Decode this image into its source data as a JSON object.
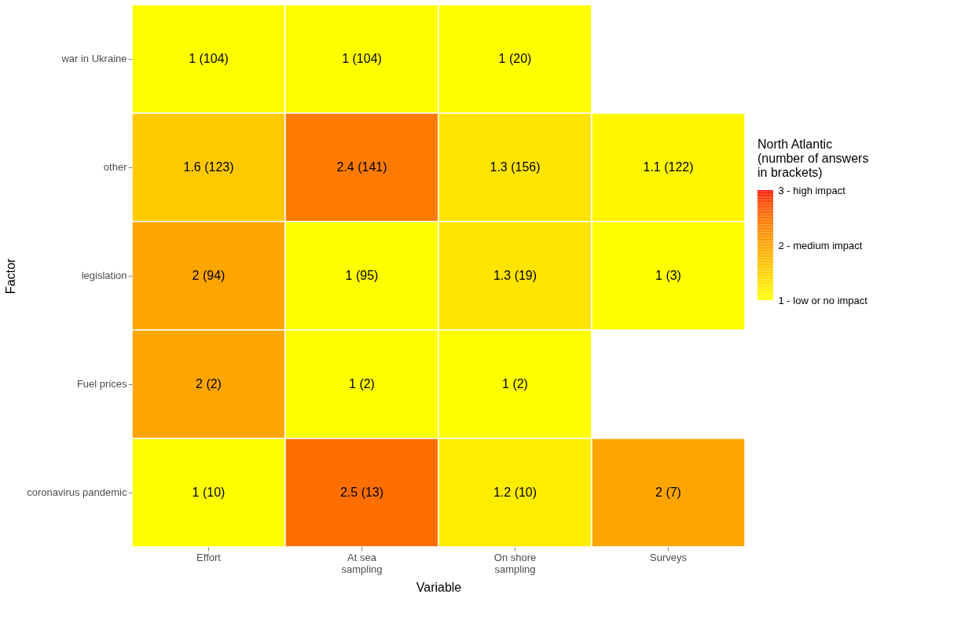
{
  "chart_data": {
    "type": "heatmap",
    "xlabel": "Variable",
    "ylabel": "Factor",
    "legend_title": "North Atlantic\n(number of answers\nin brackets)",
    "categories": [
      "Effort",
      "At sea\nsampling",
      "On shore\nsampling",
      "Surveys"
    ],
    "y_categories": [
      "war in Ukraine",
      "other",
      "legislation",
      "Fuel prices",
      "coronavirus pandemic"
    ],
    "cells": [
      [
        1,
        1,
        1,
        null
      ],
      [
        1.6,
        2.4,
        1.3,
        1.1
      ],
      [
        2,
        1,
        1.3,
        1
      ],
      [
        2,
        1,
        1,
        null
      ],
      [
        1,
        2.5,
        1.2,
        2
      ]
    ],
    "cell_labels": [
      [
        "1 (104)",
        "1 (104)",
        "1 (20)",
        null
      ],
      [
        "1.6 (123)",
        "2.4 (141)",
        "1.3 (156)",
        "1.1 (122)"
      ],
      [
        "2 (94)",
        "1 (95)",
        "1.3 (19)",
        "1 (3)"
      ],
      [
        "2 (2)",
        "1 (2)",
        "1 (2)",
        null
      ],
      [
        "1 (10)",
        "2.5 (13)",
        "1.2 (10)",
        "2 (7)"
      ]
    ],
    "clim": [
      1,
      3
    ],
    "cticks": [
      {
        "value": 1,
        "label": "1 - low or no impact"
      },
      {
        "value": 2,
        "label": "2 - medium impact"
      },
      {
        "value": 3,
        "label": "3 - high impact"
      }
    ],
    "colors": [
      "#ffff00",
      "#ffa500",
      "#ff0000"
    ],
    "grid": false
  }
}
